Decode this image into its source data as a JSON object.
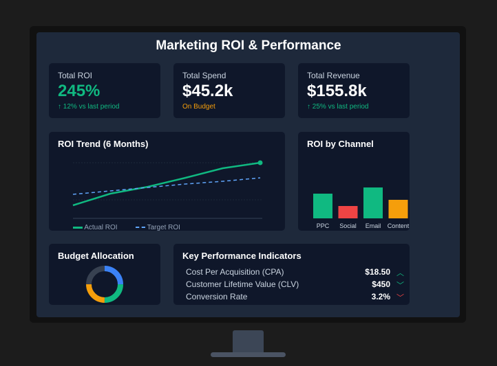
{
  "title": "Marketing ROI & Performance",
  "metrics": [
    {
      "label": "Total ROI",
      "value": "245%",
      "sub": "↑ 12% vs last period",
      "sub_color": "#10b981",
      "value_color": "#10b981"
    },
    {
      "label": "Total Spend",
      "value": "$45.2k",
      "sub": "On Budget",
      "sub_color": "#f59e0b",
      "value_color": "#ffffff"
    },
    {
      "label": "Total Revenue",
      "value": "$155.8k",
      "sub": "↑ 25% vs last period",
      "sub_color": "#10b981",
      "value_color": "#ffffff"
    }
  ],
  "chart_data": [
    {
      "type": "line",
      "title": "ROI Trend (6 Months)",
      "series": [
        {
          "name": "Actual ROI",
          "values": [
            19,
            36,
            46,
            59,
            73,
            81
          ],
          "color": "#10b981",
          "style": "solid"
        },
        {
          "name": "Target ROI",
          "values": [
            35,
            40,
            45,
            50,
            54,
            59
          ],
          "color": "#60a5fa",
          "style": "dashed"
        }
      ],
      "ylim": [
        0,
        90
      ],
      "legend": "bottom",
      "grid": true
    },
    {
      "type": "bar",
      "title": "ROI by Channel",
      "categories": [
        "PPC",
        "Social",
        "Email",
        "Content"
      ],
      "values": [
        36,
        18,
        45,
        27
      ],
      "colors": [
        "#10b981",
        "#ef4444",
        "#10b981",
        "#f59e0b"
      ]
    },
    {
      "type": "pie",
      "title": "Budget Allocation",
      "values": [
        25,
        25,
        25,
        25
      ],
      "colors": [
        "#3b82f6",
        "#10b981",
        "#f59e0b",
        "#374151"
      ]
    }
  ],
  "kpis": {
    "title": "Key Performance Indicators",
    "items": [
      {
        "label": "Cost Per Acquisition (CPA)",
        "value": "$18.50",
        "icon": "chevron-up",
        "color": "#10b981"
      },
      {
        "label": "Customer Lifetime Value (CLV)",
        "value": "$450",
        "icon": "chevron-down",
        "color": "#10b981"
      },
      {
        "label": "Conversion Rate",
        "value": "3.2%",
        "icon": "chevron-down",
        "color": "#ef4444"
      }
    ]
  }
}
